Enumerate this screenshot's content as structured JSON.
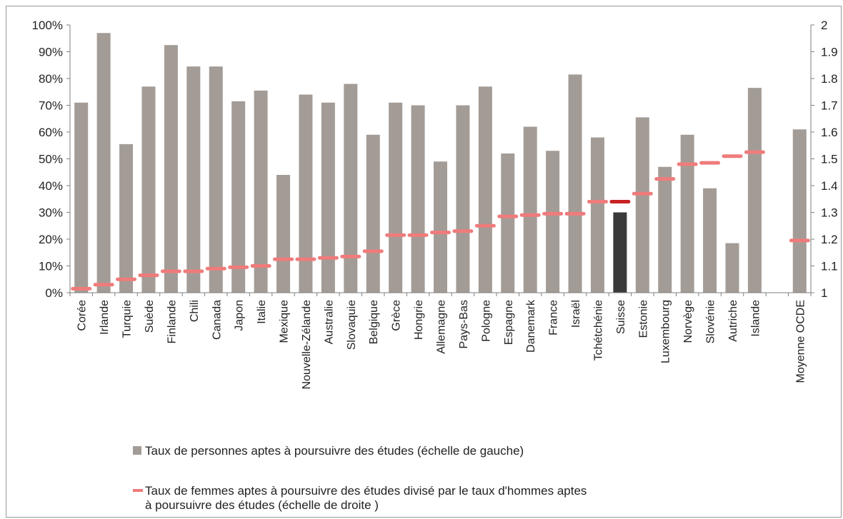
{
  "chart_data": {
    "type": "bar",
    "categories": [
      "Corée",
      "Irlande",
      "Turquie",
      "Suède",
      "Finlande",
      "Chili",
      "Canada",
      "Japon",
      "Italie",
      "Mexique",
      "Nouvelle-Zélande",
      "Australie",
      "Slovaquie",
      "Belgique",
      "Grèce",
      "Hongrie",
      "Allemagne",
      "Pays-Bas",
      "Pologne",
      "Espagne",
      "Danemark",
      "France",
      "Israël",
      "Tchétchénie",
      "Suisse",
      "Estonie",
      "Luxembourg",
      "Norvège",
      "Slovénie",
      "Autriche",
      "Islande",
      "",
      "Moyenne OCDE"
    ],
    "series": [
      {
        "name": "Taux de personnes aptes à poursuivre des études (échelle de gauche)",
        "axis": "left",
        "values": [
          71,
          97,
          55.5,
          77,
          92.5,
          84.5,
          84.5,
          71.5,
          75.5,
          44,
          74,
          71,
          78,
          59,
          71,
          70,
          49,
          70,
          77,
          52,
          62,
          53,
          81.5,
          58,
          30,
          65.5,
          47,
          59,
          39,
          18.5,
          76.5,
          null,
          61
        ],
        "color": "#a39c96",
        "highlight_color": "#3a3a3a",
        "highlight_category": "Suisse"
      },
      {
        "name": "Taux de femmes aptes à poursuivre des études divisé par le taux d'hommes aptes à poursuivre des études (échelle de droite )",
        "axis": "right",
        "values": [
          1.015,
          1.03,
          1.05,
          1.065,
          1.08,
          1.08,
          1.09,
          1.095,
          1.1,
          1.125,
          1.125,
          1.13,
          1.135,
          1.155,
          1.215,
          1.215,
          1.225,
          1.23,
          1.25,
          1.285,
          1.29,
          1.295,
          1.295,
          1.34,
          1.34,
          1.37,
          1.425,
          1.48,
          1.485,
          1.51,
          1.525,
          null,
          1.195
        ],
        "color": "#ef7b7b",
        "highlight_color": "#c82121",
        "highlight_category": "Suisse"
      }
    ],
    "y_left": {
      "min": 0,
      "max": 100,
      "ticks": [
        "0%",
        "10%",
        "20%",
        "30%",
        "40%",
        "50%",
        "60%",
        "70%",
        "80%",
        "90%",
        "100%"
      ]
    },
    "y_right": {
      "min": 1,
      "max": 2,
      "ticks": [
        "1",
        "1.1",
        "1.2",
        "1.3",
        "1.4",
        "1.5",
        "1.6",
        "1.7",
        "1.8",
        "1.9",
        "2"
      ]
    },
    "grid": false,
    "legend_position": "bottom-left",
    "legend": [
      {
        "kind": "bar",
        "lines": [
          "Taux de personnes aptes à poursuivre des études (échelle de gauche)"
        ]
      },
      {
        "kind": "dash",
        "lines": [
          "Taux de femmes aptes à poursuivre des études divisé par le taux d'hommes aptes",
          "à poursuivre des études (échelle de droite )"
        ]
      }
    ]
  }
}
